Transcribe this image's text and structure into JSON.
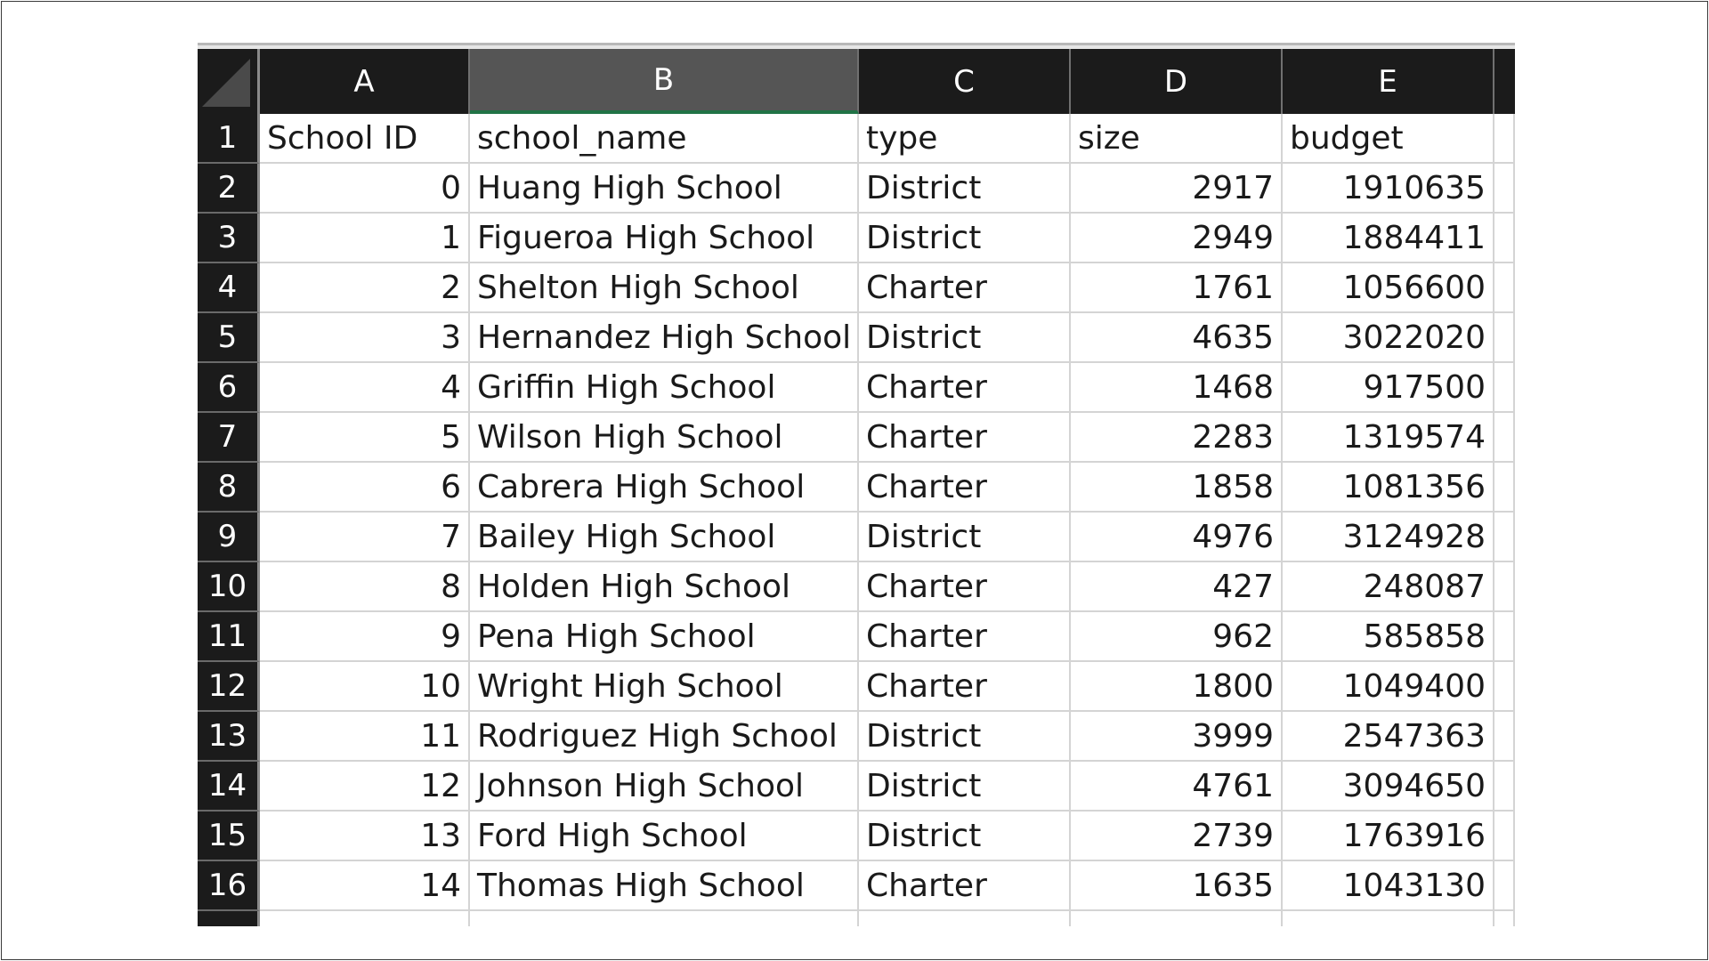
{
  "columns": [
    "A",
    "B",
    "C",
    "D",
    "E",
    ""
  ],
  "selected_column": "B",
  "header_row": {
    "num": "1",
    "cells": [
      "School ID",
      "school_name",
      "type",
      "size",
      "budget"
    ]
  },
  "rows": [
    {
      "num": "2",
      "cells": [
        "0",
        "Huang High School",
        "District",
        "2917",
        "1910635"
      ]
    },
    {
      "num": "3",
      "cells": [
        "1",
        "Figueroa High School",
        "District",
        "2949",
        "1884411"
      ]
    },
    {
      "num": "4",
      "cells": [
        "2",
        "Shelton High School",
        "Charter",
        "1761",
        "1056600"
      ]
    },
    {
      "num": "5",
      "cells": [
        "3",
        "Hernandez High School",
        "District",
        "4635",
        "3022020"
      ]
    },
    {
      "num": "6",
      "cells": [
        "4",
        "Griffin High School",
        "Charter",
        "1468",
        "917500"
      ]
    },
    {
      "num": "7",
      "cells": [
        "5",
        "Wilson High School",
        "Charter",
        "2283",
        "1319574"
      ]
    },
    {
      "num": "8",
      "cells": [
        "6",
        "Cabrera High School",
        "Charter",
        "1858",
        "1081356"
      ]
    },
    {
      "num": "9",
      "cells": [
        "7",
        "Bailey High School",
        "District",
        "4976",
        "3124928"
      ]
    },
    {
      "num": "10",
      "cells": [
        "8",
        "Holden High School",
        "Charter",
        "427",
        "248087"
      ]
    },
    {
      "num": "11",
      "cells": [
        "9",
        "Pena High School",
        "Charter",
        "962",
        "585858"
      ]
    },
    {
      "num": "12",
      "cells": [
        "10",
        "Wright High School",
        "Charter",
        "1800",
        "1049400"
      ]
    },
    {
      "num": "13",
      "cells": [
        "11",
        "Rodriguez High School",
        "District",
        "3999",
        "2547363"
      ]
    },
    {
      "num": "14",
      "cells": [
        "12",
        "Johnson High School",
        "District",
        "4761",
        "3094650"
      ]
    },
    {
      "num": "15",
      "cells": [
        "13",
        "Ford High School",
        "District",
        "2739",
        "1763916"
      ]
    },
    {
      "num": "16",
      "cells": [
        "14",
        "Thomas High School",
        "Charter",
        "1635",
        "1043130"
      ]
    }
  ]
}
